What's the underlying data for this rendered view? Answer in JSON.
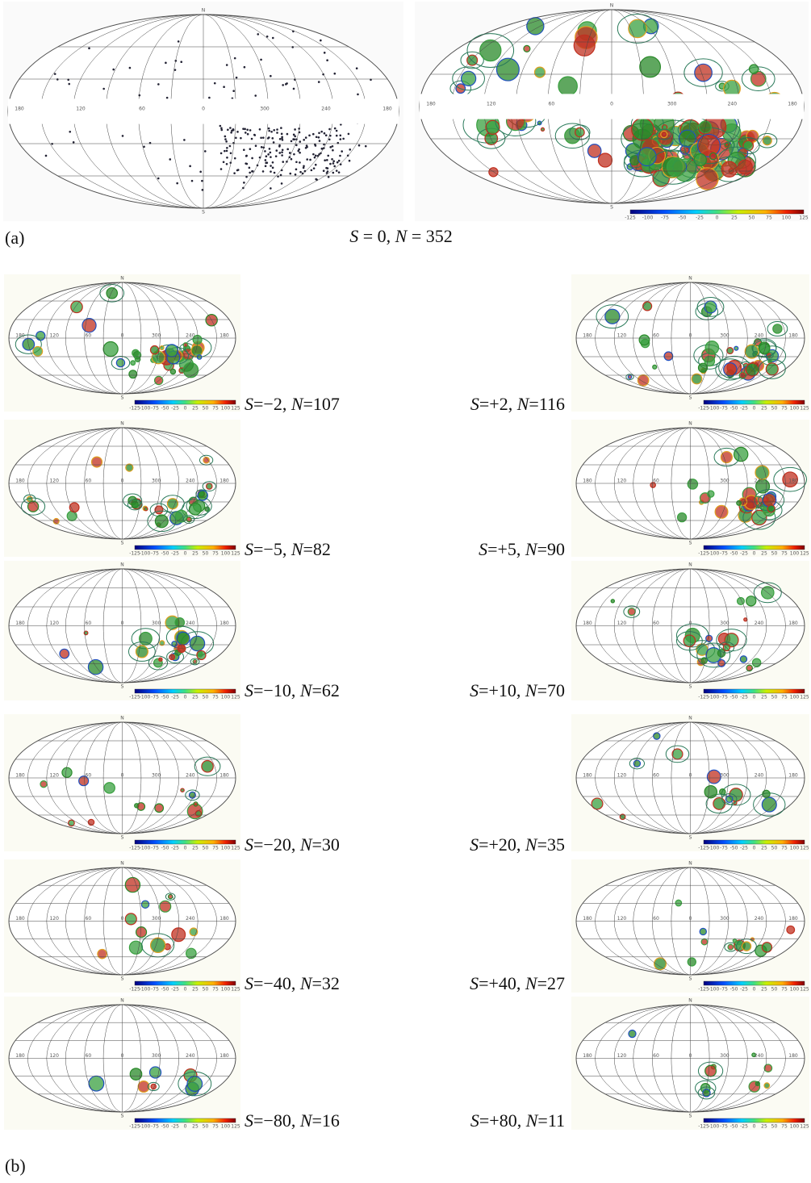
{
  "figure": {
    "longitude_labels": [
      "180",
      "120",
      "60",
      "0",
      "300",
      "240",
      "180"
    ],
    "pole_labels": [
      "N",
      "S"
    ],
    "colorbar_labels": [
      "-125",
      "-100",
      "-75",
      "-50",
      "-25",
      "0",
      "25",
      "50",
      "75",
      "100",
      "125"
    ],
    "panel_a": {
      "label": "(a)",
      "caption": [
        "S",
        " = 0, ",
        "N",
        " = 352"
      ]
    },
    "panel_b": {
      "label": "(b)",
      "maps": [
        {
          "caption": [
            "S",
            "=−2, ",
            "N",
            "=107"
          ]
        },
        {
          "caption": [
            "S",
            "=+2, ",
            "N",
            "=116"
          ]
        },
        {
          "caption": [
            "S",
            "=−5, ",
            "N",
            "=82"
          ]
        },
        {
          "caption": [
            "S",
            "=+5, ",
            "N",
            "=90"
          ]
        },
        {
          "caption": [
            "S",
            "=−10, ",
            "N",
            "=62"
          ]
        },
        {
          "caption": [
            "S",
            "=+10, ",
            "N",
            "=70"
          ]
        },
        {
          "caption": [
            "S",
            "=−20, ",
            "N",
            "=30"
          ]
        },
        {
          "caption": [
            "S",
            "=+20, ",
            "N",
            "=35"
          ]
        },
        {
          "caption": [
            "S",
            "=−40, ",
            "N",
            "=32"
          ]
        },
        {
          "caption": [
            "S",
            "=+40, ",
            "N",
            "=27"
          ]
        },
        {
          "caption": [
            "S",
            "=−80, ",
            "N",
            "=16"
          ]
        },
        {
          "caption": [
            "S",
            "=+80, ",
            "N",
            "=11"
          ]
        }
      ]
    }
  }
}
